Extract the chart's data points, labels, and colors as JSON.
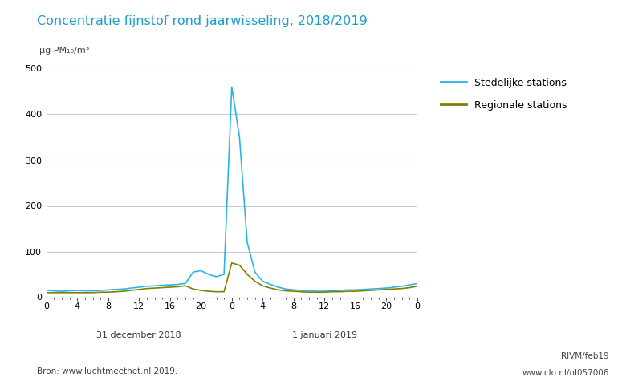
{
  "title": "Concentratie fijnstof rond jaarwisseling, 2018/2019",
  "ylabel": "μg PM₁₀/m³",
  "title_color": "#1a9ec9",
  "line_blue_color": "#29b5e8",
  "line_olive_color": "#808000",
  "legend_labels": [
    "Stedelijke stations",
    "Regionale stations"
  ],
  "background_color": "#ffffff",
  "grid_color": "#cccccc",
  "ylim": [
    0,
    500
  ],
  "yticks": [
    0,
    100,
    200,
    300,
    400,
    500
  ],
  "xtick_labels": [
    "0",
    "4",
    "8",
    "12",
    "16",
    "20",
    "0",
    "4",
    "8",
    "12",
    "16",
    "20",
    "0"
  ],
  "x_date_labels": [
    "31 december 2018",
    "1 januari 2019"
  ],
  "source_text": "Bron: www.luchtmeetnet.nl 2019.",
  "credit_text1": "RIVM/feb19",
  "credit_text2": "www.clo.nl/nl057006",
  "stedelijk": [
    15,
    14,
    13,
    14,
    15,
    14,
    14,
    15,
    16,
    17,
    18,
    20,
    22,
    24,
    25,
    26,
    27,
    28,
    30,
    55,
    58,
    50,
    45,
    50,
    460,
    350,
    120,
    55,
    35,
    28,
    22,
    18,
    16,
    15,
    14,
    13,
    13,
    14,
    15,
    16,
    16,
    17,
    18,
    19,
    20,
    22,
    24,
    27,
    30
  ],
  "regionaal": [
    10,
    10,
    10,
    10,
    10,
    10,
    10,
    11,
    11,
    12,
    13,
    15,
    17,
    19,
    20,
    21,
    22,
    23,
    25,
    18,
    15,
    13,
    12,
    12,
    75,
    70,
    50,
    35,
    25,
    20,
    16,
    14,
    13,
    12,
    11,
    11,
    11,
    12,
    12,
    13,
    13,
    14,
    15,
    16,
    17,
    18,
    19,
    21,
    24
  ]
}
